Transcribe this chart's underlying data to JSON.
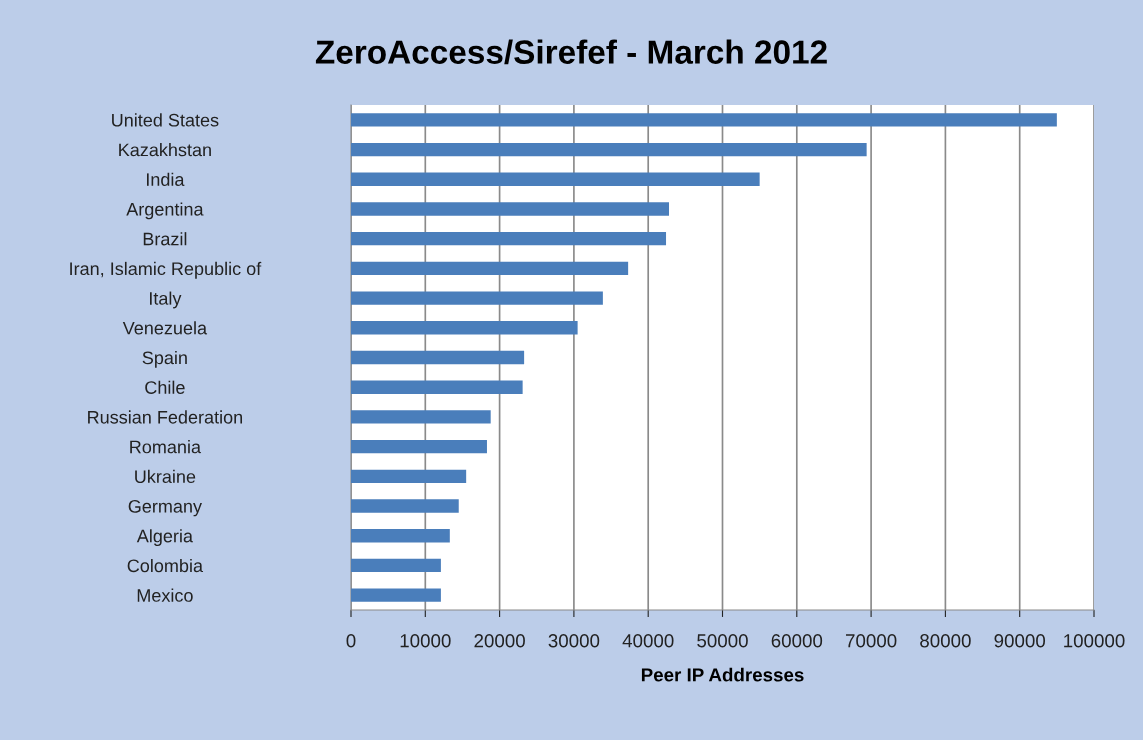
{
  "chart_data": {
    "type": "bar",
    "orientation": "horizontal",
    "title": "ZeroAccess/Sirefef - March 2012",
    "xlabel": "Peer IP Addresses",
    "categories": [
      "United States",
      "Kazakhstan",
      "India",
      "Argentina",
      "Brazil",
      "Iran, Islamic Republic of",
      "Italy",
      "Venezuela",
      "Spain",
      "Chile",
      "Russian Federation",
      "Romania",
      "Ukraine",
      "Germany",
      "Algeria",
      "Colombia",
      "Mexico"
    ],
    "values": [
      95000,
      69400,
      55000,
      42800,
      42400,
      37300,
      33900,
      30500,
      23300,
      23100,
      18800,
      18300,
      15500,
      14500,
      13300,
      12100,
      12100
    ],
    "color": "#4a7ebb",
    "xlim": [
      0,
      100000
    ],
    "xticks": [
      0,
      10000,
      20000,
      30000,
      40000,
      50000,
      60000,
      70000,
      80000,
      90000,
      100000
    ],
    "grid": "x"
  }
}
